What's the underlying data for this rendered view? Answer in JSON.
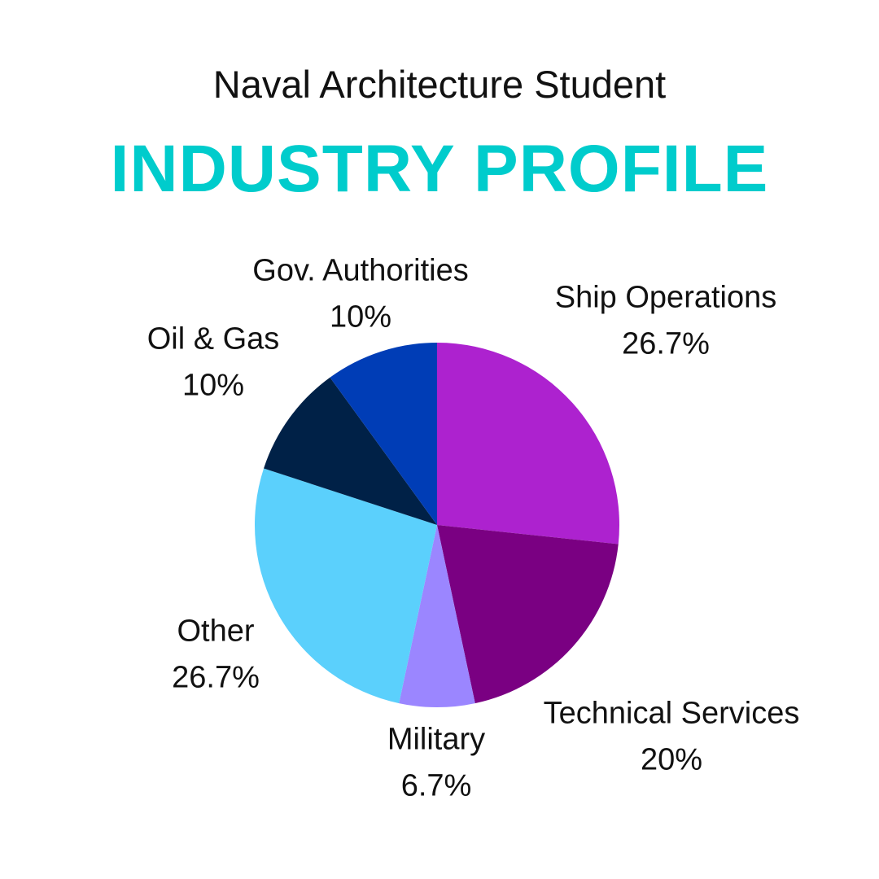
{
  "header": {
    "subtitle": "Naval Architecture Student",
    "title": "INDUSTRY PROFILE"
  },
  "colors": {
    "title": "#00CCCC",
    "text": "#111111",
    "background": "#FFFFFF"
  },
  "chart_data": {
    "type": "pie",
    "title": "INDUSTRY PROFILE",
    "subtitle": "Naval Architecture Student",
    "start": "12 o'clock",
    "direction": "clockwise",
    "slices": [
      {
        "label": "Ship Operations",
        "value": 26.7,
        "value_label": "26.7%",
        "color": "#AD22CF"
      },
      {
        "label": "Technical Services",
        "value": 20,
        "value_label": "20%",
        "color": "#7A0082"
      },
      {
        "label": "Military",
        "value": 6.7,
        "value_label": "6.7%",
        "color": "#9B86FF"
      },
      {
        "label": "Other",
        "value": 26.7,
        "value_label": "26.7%",
        "color": "#5BD0FC"
      },
      {
        "label": "Oil & Gas",
        "value": 10,
        "value_label": "10%",
        "color": "#002147"
      },
      {
        "label": "Gov. Authorities",
        "value": 10,
        "value_label": "10%",
        "color": "#003DB6"
      }
    ]
  }
}
